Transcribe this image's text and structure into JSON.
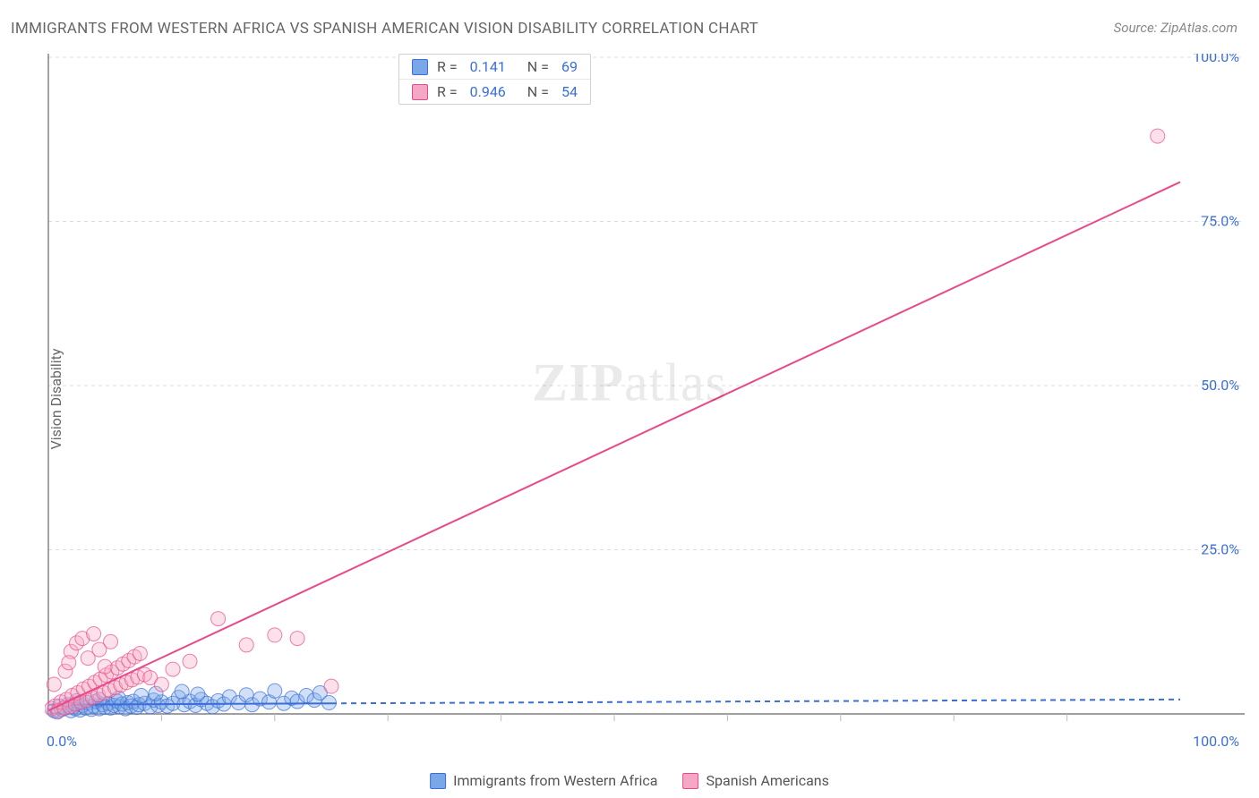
{
  "title": "IMMIGRANTS FROM WESTERN AFRICA VS SPANISH AMERICAN VISION DISABILITY CORRELATION CHART",
  "source_label": "Source:",
  "source_name": "ZipAtlas.com",
  "ylabel": "Vision Disability",
  "watermark": "ZIPatlas",
  "chart": {
    "type": "scatter-with-regression",
    "background_color": "#ffffff",
    "grid_color": "#dcdcdc",
    "grid_dash": "4,4",
    "xlim": [
      0,
      100
    ],
    "ylim": [
      0,
      100
    ],
    "x_axis": {
      "tick_positions": [
        0,
        100
      ],
      "tick_labels": [
        "0.0%",
        "100.0%"
      ],
      "tick_color": "#3b6fd6",
      "minor_ticks": [
        10,
        20,
        30,
        40,
        50,
        60,
        70,
        80,
        90
      ],
      "minor_tick_color": "#bbbbbb"
    },
    "y_axis": {
      "tick_positions": [
        25,
        50,
        75,
        100
      ],
      "tick_labels": [
        "25.0%",
        "50.0%",
        "75.0%",
        "100.0%"
      ],
      "tick_color": "#3b6fd6",
      "grid_positions": [
        0,
        25,
        50,
        75,
        100
      ]
    },
    "axis_line_color": "#666666",
    "marker_radius": 8,
    "marker_opacity": 0.35,
    "line_width": 2
  },
  "series": [
    {
      "name": "Immigrants from Western Africa",
      "color_fill": "#7aa7e8",
      "color_stroke": "#3b6fd6",
      "R": "0.141",
      "N": "69",
      "regression": {
        "x0": 0,
        "y0": 1.4,
        "x1": 100,
        "y1": 2.2,
        "dash": "6,5"
      },
      "regression_solid_end_x": 25,
      "points": [
        [
          0.5,
          0.5
        ],
        [
          0.8,
          0.3
        ],
        [
          1.0,
          1.2
        ],
        [
          1.2,
          0.7
        ],
        [
          1.5,
          0.9
        ],
        [
          1.7,
          1.4
        ],
        [
          2.0,
          0.5
        ],
        [
          2.2,
          1.1
        ],
        [
          2.4,
          0.8
        ],
        [
          2.6,
          1.6
        ],
        [
          2.8,
          0.6
        ],
        [
          3.0,
          1.3
        ],
        [
          3.3,
          0.9
        ],
        [
          3.5,
          1.7
        ],
        [
          3.8,
          0.7
        ],
        [
          4.0,
          1.2
        ],
        [
          4.2,
          1.9
        ],
        [
          4.5,
          0.8
        ],
        [
          4.8,
          1.4
        ],
        [
          5.0,
          1.0
        ],
        [
          5.3,
          1.6
        ],
        [
          5.5,
          0.9
        ],
        [
          5.8,
          1.3
        ],
        [
          6.0,
          2.0
        ],
        [
          6.3,
          1.1
        ],
        [
          6.5,
          1.5
        ],
        [
          6.8,
          0.8
        ],
        [
          7.0,
          1.7
        ],
        [
          7.3,
          1.2
        ],
        [
          7.5,
          1.9
        ],
        [
          7.8,
          1.0
        ],
        [
          8.0,
          1.4
        ],
        [
          8.5,
          1.6
        ],
        [
          9.0,
          1.1
        ],
        [
          9.3,
          2.1
        ],
        [
          9.7,
          1.3
        ],
        [
          10.0,
          1.8
        ],
        [
          10.5,
          1.2
        ],
        [
          11.0,
          1.6
        ],
        [
          11.5,
          2.5
        ],
        [
          12.0,
          1.4
        ],
        [
          12.5,
          1.9
        ],
        [
          13.0,
          1.3
        ],
        [
          13.5,
          2.2
        ],
        [
          14.0,
          1.6
        ],
        [
          14.5,
          1.1
        ],
        [
          15.0,
          2.0
        ],
        [
          15.5,
          1.5
        ],
        [
          16.0,
          2.6
        ],
        [
          16.8,
          1.7
        ],
        [
          17.5,
          2.9
        ],
        [
          18.0,
          1.4
        ],
        [
          18.7,
          2.3
        ],
        [
          19.5,
          1.8
        ],
        [
          20.0,
          3.5
        ],
        [
          20.8,
          1.6
        ],
        [
          21.5,
          2.4
        ],
        [
          22.0,
          1.9
        ],
        [
          22.8,
          2.8
        ],
        [
          23.5,
          2.1
        ],
        [
          24.0,
          3.2
        ],
        [
          24.8,
          1.7
        ],
        [
          8.2,
          2.8
        ],
        [
          9.5,
          3.1
        ],
        [
          11.8,
          3.4
        ],
        [
          13.2,
          3.0
        ],
        [
          6.2,
          2.4
        ],
        [
          4.5,
          2.2
        ],
        [
          2.5,
          2.0
        ]
      ]
    },
    {
      "name": "Spanish Americans",
      "color_fill": "#f5a8c4",
      "color_stroke": "#e84b8a",
      "R": "0.946",
      "N": "54",
      "regression": {
        "x0": 0,
        "y0": 0.5,
        "x1": 100,
        "y1": 81,
        "dash": null
      },
      "regression_solid_end_x": 100,
      "points": [
        [
          0.3,
          0.8
        ],
        [
          0.6,
          1.2
        ],
        [
          0.9,
          0.5
        ],
        [
          1.1,
          1.8
        ],
        [
          1.4,
          0.9
        ],
        [
          1.6,
          2.2
        ],
        [
          1.9,
          1.1
        ],
        [
          2.1,
          2.8
        ],
        [
          2.4,
          1.5
        ],
        [
          2.6,
          3.2
        ],
        [
          2.9,
          1.8
        ],
        [
          3.1,
          3.8
        ],
        [
          3.4,
          2.1
        ],
        [
          3.6,
          4.2
        ],
        [
          3.9,
          2.5
        ],
        [
          4.1,
          4.8
        ],
        [
          4.4,
          2.9
        ],
        [
          4.6,
          5.3
        ],
        [
          4.9,
          3.2
        ],
        [
          5.1,
          5.9
        ],
        [
          5.4,
          3.6
        ],
        [
          5.6,
          6.4
        ],
        [
          5.9,
          4.0
        ],
        [
          6.1,
          7.0
        ],
        [
          6.4,
          4.4
        ],
        [
          6.6,
          7.6
        ],
        [
          6.9,
          4.8
        ],
        [
          7.1,
          8.1
        ],
        [
          7.4,
          5.2
        ],
        [
          7.6,
          8.7
        ],
        [
          7.9,
          5.6
        ],
        [
          8.1,
          9.2
        ],
        [
          2.0,
          9.5
        ],
        [
          2.5,
          10.8
        ],
        [
          3.0,
          11.5
        ],
        [
          3.5,
          8.5
        ],
        [
          4.0,
          12.2
        ],
        [
          4.5,
          9.8
        ],
        [
          5.0,
          7.2
        ],
        [
          5.5,
          11.0
        ],
        [
          1.5,
          6.5
        ],
        [
          1.8,
          7.8
        ],
        [
          8.5,
          6.0
        ],
        [
          9.0,
          5.5
        ],
        [
          10.0,
          4.5
        ],
        [
          11.0,
          6.8
        ],
        [
          12.5,
          8.0
        ],
        [
          15.0,
          14.5
        ],
        [
          17.5,
          10.5
        ],
        [
          20.0,
          12.0
        ],
        [
          22.0,
          11.5
        ],
        [
          25.0,
          4.2
        ],
        [
          98.0,
          88.0
        ],
        [
          0.5,
          4.5
        ]
      ]
    }
  ],
  "legend_bottom": [
    {
      "label": "Immigrants from Western Africa",
      "fill": "#7aa7e8",
      "stroke": "#3b6fd6"
    },
    {
      "label": "Spanish Americans",
      "fill": "#f5a8c4",
      "stroke": "#e84b8a"
    }
  ]
}
